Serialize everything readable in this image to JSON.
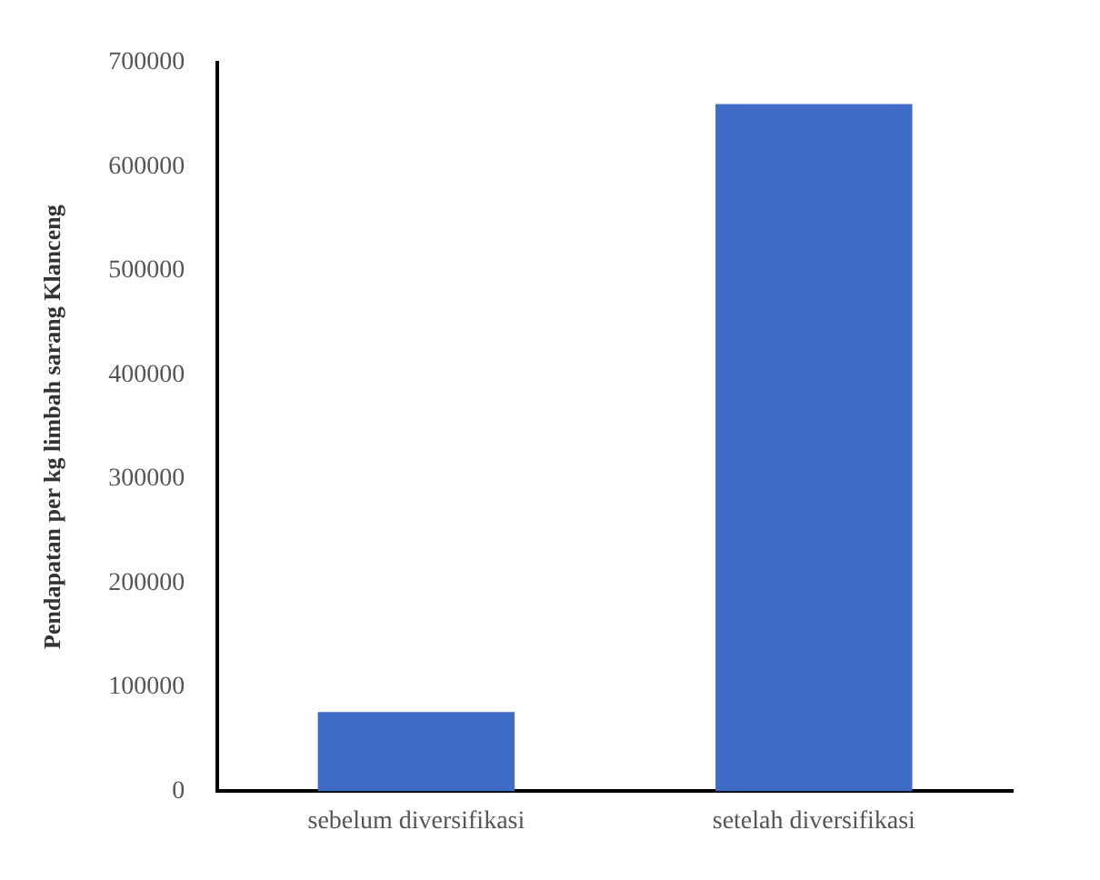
{
  "chart_data": {
    "type": "bar",
    "ylabel": "Pendapatan per kg limbah sarang Klanceng",
    "categories": [
      "sebelum diversifikasi",
      "setelah diversifikasi"
    ],
    "values": [
      76000,
      660000
    ],
    "color": "#3e6bc6",
    "ylim": [
      0,
      700000
    ],
    "yticks": [
      0,
      100000,
      200000,
      300000,
      400000,
      500000,
      600000,
      700000
    ],
    "grid": false
  }
}
